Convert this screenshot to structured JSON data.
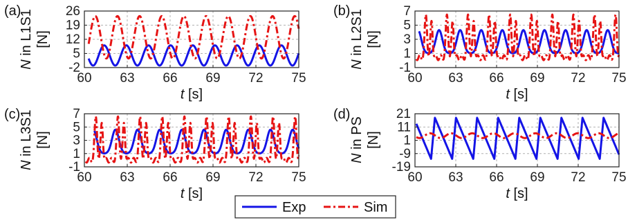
{
  "figure": {
    "legend": {
      "entries": [
        {
          "name": "Exp",
          "color": "#1414e6",
          "style": "solid"
        },
        {
          "name": "Sim",
          "color": "#e61414",
          "style": "dash-dot"
        }
      ]
    }
  },
  "chart_data": [
    {
      "panel_label": "(a)",
      "type": "line",
      "ylabel": "N in L1S1 [N]",
      "xlabel": "t [s]",
      "xlim": [
        60,
        75
      ],
      "ylim": [
        -2,
        26
      ],
      "xticks": [
        60,
        63,
        66,
        69,
        72,
        75
      ],
      "yticks": [
        -2,
        5,
        12,
        19,
        26
      ],
      "grid": true,
      "series": [
        {
          "name": "Exp",
          "color": "#1414e6",
          "style": "solid",
          "model": {
            "kind": "sine",
            "start": 60.3,
            "period": 1.55,
            "phase": 0.55,
            "mean": 4.0,
            "amplitude": 5.0,
            "harmonic": 0.0
          }
        },
        {
          "name": "Sim",
          "color": "#e61414",
          "style": "dash-dot",
          "model": {
            "kind": "sine",
            "start": 60.3,
            "period": 1.55,
            "phase": 0.95,
            "mean": 13.0,
            "amplitude": 10.5,
            "harmonic": 0.0
          }
        }
      ]
    },
    {
      "panel_label": "(b)",
      "type": "line",
      "ylabel": "N in L2S1 [N]",
      "xlabel": "t [s]",
      "xlim": [
        60,
        75
      ],
      "ylim": [
        -1,
        7
      ],
      "xticks": [
        60,
        63,
        66,
        69,
        72,
        75
      ],
      "yticks": [
        -1,
        1,
        3,
        5,
        7
      ],
      "grid": true,
      "series": [
        {
          "name": "Exp",
          "color": "#1414e6",
          "style": "solid",
          "model": {
            "kind": "pulse",
            "start": 60.3,
            "period": 1.55,
            "phase": 0.55,
            "base": 1.0,
            "peak": 4.3,
            "width": 0.22
          }
        },
        {
          "name": "Sim",
          "color": "#e61414",
          "style": "dash-dot",
          "model": {
            "kind": "spiky",
            "start": 60.1,
            "period": 1.55,
            "phase": 0.9,
            "base": 0.4,
            "peak": 6.5,
            "width": 0.08
          }
        }
      ]
    },
    {
      "panel_label": "(c)",
      "type": "line",
      "ylabel": "N in L3S1 [N]",
      "xlabel": "t [s]",
      "xlim": [
        60,
        75
      ],
      "ylim": [
        -1,
        7
      ],
      "xticks": [
        60,
        63,
        66,
        69,
        72,
        75
      ],
      "yticks": [
        -1,
        1,
        3,
        5,
        7
      ],
      "grid": true,
      "series": [
        {
          "name": "Exp",
          "color": "#1414e6",
          "style": "solid",
          "model": {
            "kind": "pulse",
            "start": 60.7,
            "period": 1.55,
            "phase": 0.55,
            "base": 1.0,
            "peak": 4.6,
            "width": 0.22
          }
        },
        {
          "name": "Sim",
          "color": "#e61414",
          "style": "dash-dot",
          "model": {
            "kind": "spiky",
            "start": 60.1,
            "period": 1.55,
            "phase": 0.9,
            "base": 0.0,
            "peak": 6.6,
            "width": 0.08
          }
        }
      ]
    },
    {
      "panel_label": "(d)",
      "type": "line",
      "ylabel": "N in PS [N]",
      "xlabel": "t [s]",
      "xlim": [
        60,
        75
      ],
      "ylim": [
        -19,
        21
      ],
      "xticks": [
        60,
        63,
        66,
        69,
        72,
        75
      ],
      "yticks": [
        -19,
        -9,
        1,
        11,
        21
      ],
      "grid": true,
      "series": [
        {
          "name": "Exp",
          "color": "#1414e6",
          "style": "solid",
          "model": {
            "kind": "saw",
            "start": 60.1,
            "period": 1.55,
            "phase": 0.3,
            "low": -13.0,
            "high": 18.0
          }
        },
        {
          "name": "Sim",
          "color": "#e61414",
          "style": "dash-dot",
          "model": {
            "kind": "sine",
            "start": 60.1,
            "period": 1.55,
            "phase": 0.6,
            "mean": 4.5,
            "amplitude": 1.8,
            "harmonic": 0.0
          }
        }
      ]
    }
  ]
}
